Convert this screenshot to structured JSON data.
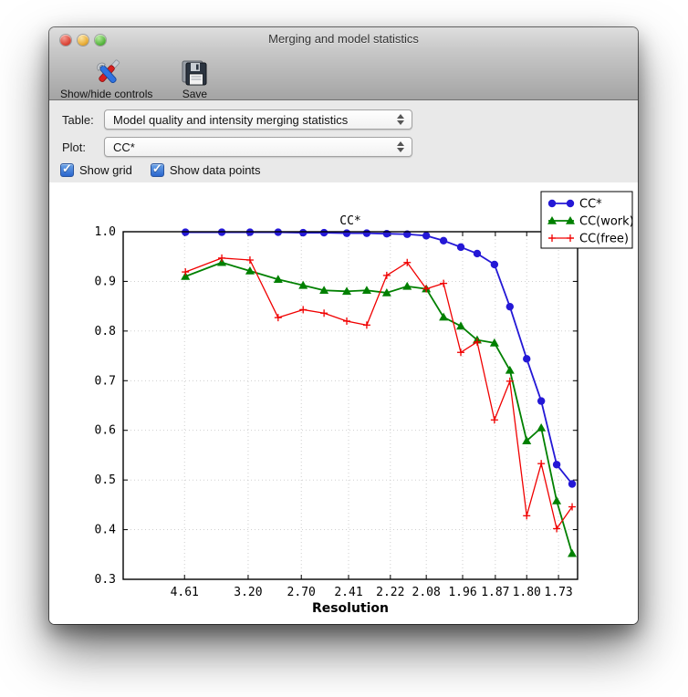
{
  "window": {
    "title": "Merging and model statistics"
  },
  "toolbar": {
    "items": [
      {
        "label": "Show/hide controls",
        "icon": "tools-icon"
      },
      {
        "label": "Save",
        "icon": "floppy-disk-icon"
      }
    ]
  },
  "controls": {
    "table_label": "Table:",
    "table_value": "Model quality and intensity merging statistics",
    "plot_label": "Plot:",
    "plot_value": "CC*",
    "checkboxes": [
      {
        "label": "Show grid",
        "checked": true
      },
      {
        "label": "Show data points",
        "checked": true
      }
    ]
  },
  "colors": {
    "checkbox_accent": "#2b66cd",
    "window_chrome_top": "#dedede",
    "window_chrome_bottom": "#a4a4a4"
  },
  "chart_data": {
    "type": "line",
    "title": "CC*",
    "xlabel": "Resolution",
    "ylim": [
      0.3,
      1.0
    ],
    "yticks": [
      "1.0",
      "0.9",
      "0.8",
      "0.7",
      "0.6",
      "0.5",
      "0.4",
      "0.3"
    ],
    "grid": true,
    "show_data_points": true,
    "legend_position": "upper right",
    "x_ticks": [
      {
        "label": "4.61",
        "pos": 0.135
      },
      {
        "label": "3.20",
        "pos": 0.275
      },
      {
        "label": "2.70",
        "pos": 0.392
      },
      {
        "label": "2.41",
        "pos": 0.496
      },
      {
        "label": "2.22",
        "pos": 0.588
      },
      {
        "label": "2.08",
        "pos": 0.667
      },
      {
        "label": "1.96",
        "pos": 0.747
      },
      {
        "label": "1.87",
        "pos": 0.819
      },
      {
        "label": "1.80",
        "pos": 0.888
      },
      {
        "label": "1.73",
        "pos": 0.958
      }
    ],
    "x_positions": [
      0.137,
      0.217,
      0.279,
      0.341,
      0.396,
      0.442,
      0.492,
      0.536,
      0.58,
      0.625,
      0.667,
      0.705,
      0.743,
      0.779,
      0.817,
      0.851,
      0.888,
      0.92,
      0.954,
      0.988
    ],
    "series": [
      {
        "name": "CC*",
        "color": "#2418d6",
        "marker": "circle",
        "values": [
          0.999,
          0.999,
          0.999,
          0.999,
          0.998,
          0.998,
          0.997,
          0.997,
          0.996,
          0.995,
          0.992,
          0.982,
          0.969,
          0.956,
          0.934,
          0.849,
          0.744,
          0.659,
          0.531,
          0.492
        ]
      },
      {
        "name": "CC(work)",
        "color": "#008000",
        "marker": "triangle",
        "values": [
          0.91,
          0.938,
          0.921,
          0.904,
          0.892,
          0.882,
          0.88,
          0.882,
          0.877,
          0.89,
          0.885,
          0.828,
          0.81,
          0.782,
          0.776,
          0.721,
          0.579,
          0.605,
          0.458,
          0.352
        ]
      },
      {
        "name": "CC(free)",
        "color": "#f00000",
        "marker": "plus",
        "values": [
          0.919,
          0.947,
          0.943,
          0.827,
          0.843,
          0.836,
          0.82,
          0.812,
          0.912,
          0.938,
          0.885,
          0.896,
          0.757,
          0.778,
          0.621,
          0.699,
          0.428,
          0.533,
          0.402,
          0.446
        ]
      }
    ]
  }
}
